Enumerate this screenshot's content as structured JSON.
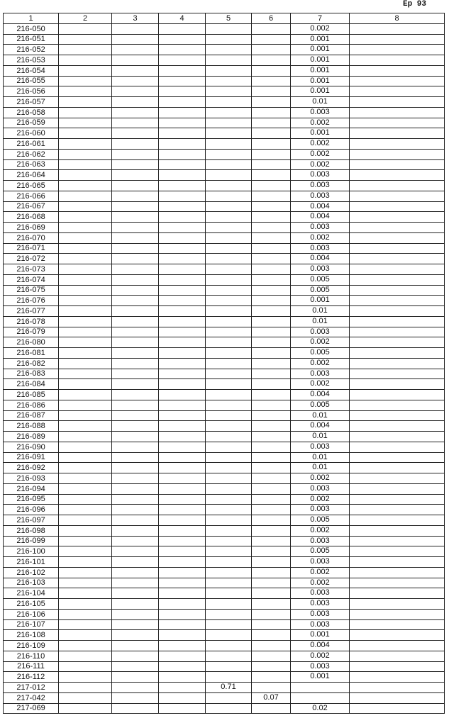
{
  "page_label": "Ер 93",
  "table": {
    "columns": [
      "1",
      "2",
      "3",
      "4",
      "5",
      "6",
      "7",
      "8"
    ],
    "rows": [
      [
        "216-050",
        null,
        null,
        null,
        null,
        null,
        0.002,
        null
      ],
      [
        "216-051",
        null,
        null,
        null,
        null,
        null,
        0.001,
        null
      ],
      [
        "216-052",
        null,
        null,
        null,
        null,
        null,
        0.001,
        null
      ],
      [
        "216-053",
        null,
        null,
        null,
        null,
        null,
        0.001,
        null
      ],
      [
        "216-054",
        null,
        null,
        null,
        null,
        null,
        0.001,
        null
      ],
      [
        "216-055",
        null,
        null,
        null,
        null,
        null,
        0.001,
        null
      ],
      [
        "216-056",
        null,
        null,
        null,
        null,
        null,
        0.001,
        null
      ],
      [
        "216-057",
        null,
        null,
        null,
        null,
        null,
        0.01,
        null
      ],
      [
        "216-058",
        null,
        null,
        null,
        null,
        null,
        0.003,
        null
      ],
      [
        "216-059",
        null,
        null,
        null,
        null,
        null,
        0.002,
        null
      ],
      [
        "216-060",
        null,
        null,
        null,
        null,
        null,
        0.001,
        null
      ],
      [
        "216-061",
        null,
        null,
        null,
        null,
        null,
        0.002,
        null
      ],
      [
        "216-062",
        null,
        null,
        null,
        null,
        null,
        0.002,
        null
      ],
      [
        "216-063",
        null,
        null,
        null,
        null,
        null,
        0.002,
        null
      ],
      [
        "216-064",
        null,
        null,
        null,
        null,
        null,
        0.003,
        null
      ],
      [
        "216-065",
        null,
        null,
        null,
        null,
        null,
        0.003,
        null
      ],
      [
        "216-066",
        null,
        null,
        null,
        null,
        null,
        0.003,
        null
      ],
      [
        "216-067",
        null,
        null,
        null,
        null,
        null,
        0.004,
        null
      ],
      [
        "216-068",
        null,
        null,
        null,
        null,
        null,
        0.004,
        null
      ],
      [
        "216-069",
        null,
        null,
        null,
        null,
        null,
        0.003,
        null
      ],
      [
        "216-070",
        null,
        null,
        null,
        null,
        null,
        0.002,
        null
      ],
      [
        "216-071",
        null,
        null,
        null,
        null,
        null,
        0.003,
        null
      ],
      [
        "216-072",
        null,
        null,
        null,
        null,
        null,
        0.004,
        null
      ],
      [
        "216-073",
        null,
        null,
        null,
        null,
        null,
        0.003,
        null
      ],
      [
        "216-074",
        null,
        null,
        null,
        null,
        null,
        0.005,
        null
      ],
      [
        "216-075",
        null,
        null,
        null,
        null,
        null,
        0.005,
        null
      ],
      [
        "216-076",
        null,
        null,
        null,
        null,
        null,
        0.001,
        null
      ],
      [
        "216-077",
        null,
        null,
        null,
        null,
        null,
        0.01,
        null
      ],
      [
        "216-078",
        null,
        null,
        null,
        null,
        null,
        0.01,
        null
      ],
      [
        "216-079",
        null,
        null,
        null,
        null,
        null,
        0.003,
        null
      ],
      [
        "216-080",
        null,
        null,
        null,
        null,
        null,
        0.002,
        null
      ],
      [
        "216-081",
        null,
        null,
        null,
        null,
        null,
        0.005,
        null
      ],
      [
        "216-082",
        null,
        null,
        null,
        null,
        null,
        0.002,
        null
      ],
      [
        "216-083",
        null,
        null,
        null,
        null,
        null,
        0.003,
        null
      ],
      [
        "216-084",
        null,
        null,
        null,
        null,
        null,
        0.002,
        null
      ],
      [
        "216-085",
        null,
        null,
        null,
        null,
        null,
        0.004,
        null
      ],
      [
        "216-086",
        null,
        null,
        null,
        null,
        null,
        0.005,
        null
      ],
      [
        "216-087",
        null,
        null,
        null,
        null,
        null,
        0.01,
        null
      ],
      [
        "216-088",
        null,
        null,
        null,
        null,
        null,
        0.004,
        null
      ],
      [
        "216-089",
        null,
        null,
        null,
        null,
        null,
        0.01,
        null
      ],
      [
        "216-090",
        null,
        null,
        null,
        null,
        null,
        0.003,
        null
      ],
      [
        "216-091",
        null,
        null,
        null,
        null,
        null,
        0.01,
        null
      ],
      [
        "216-092",
        null,
        null,
        null,
        null,
        null,
        0.01,
        null
      ],
      [
        "216-093",
        null,
        null,
        null,
        null,
        null,
        0.002,
        null
      ],
      [
        "216-094",
        null,
        null,
        null,
        null,
        null,
        0.003,
        null
      ],
      [
        "216-095",
        null,
        null,
        null,
        null,
        null,
        0.002,
        null
      ],
      [
        "216-096",
        null,
        null,
        null,
        null,
        null,
        0.003,
        null
      ],
      [
        "216-097",
        null,
        null,
        null,
        null,
        null,
        0.005,
        null
      ],
      [
        "216-098",
        null,
        null,
        null,
        null,
        null,
        0.002,
        null
      ],
      [
        "216-099",
        null,
        null,
        null,
        null,
        null,
        0.003,
        null
      ],
      [
        "216-100",
        null,
        null,
        null,
        null,
        null,
        0.005,
        null
      ],
      [
        "216-101",
        null,
        null,
        null,
        null,
        null,
        0.003,
        null
      ],
      [
        "216-102",
        null,
        null,
        null,
        null,
        null,
        0.002,
        null
      ],
      [
        "216-103",
        null,
        null,
        null,
        null,
        null,
        0.002,
        null
      ],
      [
        "216-104",
        null,
        null,
        null,
        null,
        null,
        0.003,
        null
      ],
      [
        "216-105",
        null,
        null,
        null,
        null,
        null,
        0.003,
        null
      ],
      [
        "216-106",
        null,
        null,
        null,
        null,
        null,
        0.003,
        null
      ],
      [
        "216-107",
        null,
        null,
        null,
        null,
        null,
        0.003,
        null
      ],
      [
        "216-108",
        null,
        null,
        null,
        null,
        null,
        0.001,
        null
      ],
      [
        "216-109",
        null,
        null,
        null,
        null,
        null,
        0.004,
        null
      ],
      [
        "216-110",
        null,
        null,
        null,
        null,
        null,
        0.002,
        null
      ],
      [
        "216-111",
        null,
        null,
        null,
        null,
        null,
        0.003,
        null
      ],
      [
        "216-112",
        null,
        null,
        null,
        null,
        null,
        0.001,
        null
      ],
      [
        "217-012",
        null,
        null,
        null,
        0.71,
        null,
        null,
        null
      ],
      [
        "217-042",
        null,
        null,
        null,
        null,
        0.07,
        null,
        null
      ],
      [
        "217-069",
        null,
        null,
        null,
        null,
        null,
        0.02,
        null
      ]
    ]
  }
}
